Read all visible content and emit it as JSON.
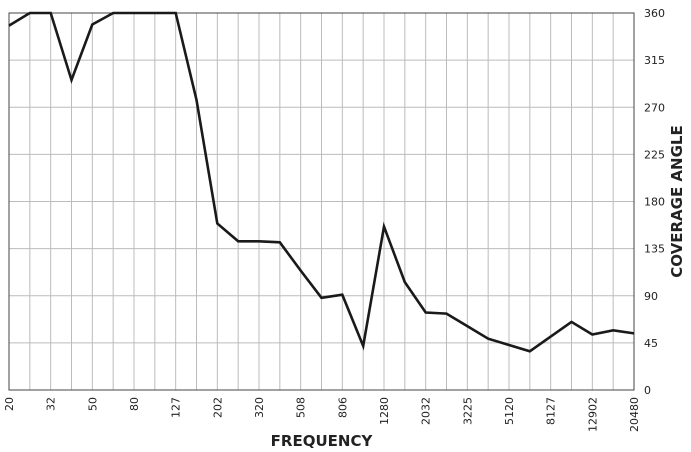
{
  "chart_data": {
    "type": "line",
    "title": "",
    "xlabel": "FREQUENCY",
    "ylabel": "COVERAGE ANGLE",
    "x_tick_labels": [
      "20",
      "32",
      "50",
      "80",
      "127",
      "202",
      "320",
      "508",
      "806",
      "1280",
      "2032",
      "3225",
      "5120",
      "8127",
      "12902",
      "20480"
    ],
    "y_tick_labels": [
      "0",
      "45",
      "90",
      "135",
      "180",
      "225",
      "270",
      "315",
      "360"
    ],
    "ylim": [
      0,
      360
    ],
    "grid": true,
    "x_grid_divisions": 30,
    "series": [
      {
        "color": "#1a1a1a",
        "values": [
          348,
          360,
          360,
          296,
          349,
          360,
          360,
          360,
          360,
          277,
          159,
          142,
          142,
          141,
          114,
          88,
          91,
          42,
          156,
          103,
          74,
          73,
          61,
          49,
          43,
          37,
          51,
          65,
          53,
          57,
          54
        ]
      }
    ]
  }
}
